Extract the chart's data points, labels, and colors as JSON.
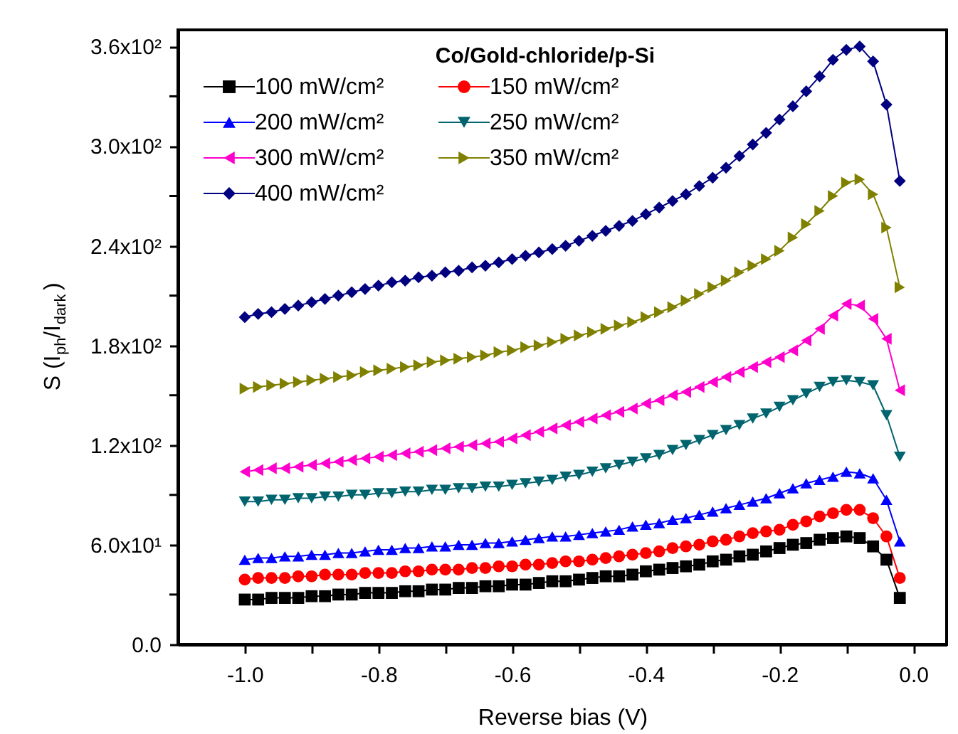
{
  "chart_data": {
    "type": "line",
    "xlabel": "Reverse bias (V)",
    "ylabel": "S (I$_{ph}$/I$_{dark}$)",
    "legend_title": "Co/Gold-chloride/p-Si",
    "legend": "top left",
    "line_style": "solid",
    "xlim": [
      -1.1,
      0.05
    ],
    "ylim": [
      0,
      370
    ],
    "xticks": [
      {
        "value": -1.0,
        "label": "-1.0"
      },
      {
        "value": -0.9,
        "label": null
      },
      {
        "value": -0.8,
        "label": "-0.8"
      },
      {
        "value": -0.7,
        "label": null
      },
      {
        "value": -0.6,
        "label": "-0.6"
      },
      {
        "value": -0.5,
        "label": null
      },
      {
        "value": -0.4,
        "label": "-0.4"
      },
      {
        "value": -0.3,
        "label": null
      },
      {
        "value": -0.2,
        "label": "-0.2"
      },
      {
        "value": -0.1,
        "label": null
      },
      {
        "value": 0.0,
        "label": "0.0"
      }
    ],
    "yticks": [
      {
        "value": 0,
        "label": "0.0"
      },
      {
        "value": 30,
        "label": null
      },
      {
        "value": 60,
        "label": "6.0x10¹"
      },
      {
        "value": 90,
        "label": null
      },
      {
        "value": 120,
        "label": "1.2x10²"
      },
      {
        "value": 150,
        "label": null
      },
      {
        "value": 180,
        "label": "1.8x10²"
      },
      {
        "value": 210,
        "label": null
      },
      {
        "value": 240,
        "label": "2.4x10²"
      },
      {
        "value": 270,
        "label": null
      },
      {
        "value": 300,
        "label": "3.0x10²"
      },
      {
        "value": 330,
        "label": null
      },
      {
        "value": 360,
        "label": "3.6x10²"
      }
    ],
    "x": [
      -1.0,
      -0.98,
      -0.96,
      -0.94,
      -0.92,
      -0.9,
      -0.88,
      -0.86,
      -0.84,
      -0.82,
      -0.8,
      -0.78,
      -0.76,
      -0.74,
      -0.72,
      -0.7,
      -0.68,
      -0.66,
      -0.64,
      -0.62,
      -0.6,
      -0.58,
      -0.56,
      -0.54,
      -0.52,
      -0.5,
      -0.48,
      -0.46,
      -0.44,
      -0.42,
      -0.4,
      -0.38,
      -0.36,
      -0.34,
      -0.32,
      -0.3,
      -0.28,
      -0.26,
      -0.24,
      -0.22,
      -0.2,
      -0.18,
      -0.16,
      -0.14,
      -0.12,
      -0.1,
      -0.08,
      -0.06,
      -0.04,
      -0.02
    ],
    "series": [
      {
        "name": "100 mW/cm²",
        "color": "#000000",
        "marker": "square",
        "values": [
          27,
          27,
          28,
          28,
          28,
          29,
          29,
          30,
          30,
          31,
          31,
          31,
          32,
          32,
          33,
          33,
          34,
          34,
          35,
          35,
          36,
          36,
          37,
          38,
          38,
          39,
          40,
          41,
          41,
          42,
          44,
          45,
          46,
          47,
          48,
          50,
          51,
          53,
          54,
          56,
          58,
          60,
          61,
          63,
          64,
          65,
          64,
          59,
          51,
          28
        ]
      },
      {
        "name": "150 mW/cm²",
        "color": "#ff0000",
        "marker": "circle",
        "values": [
          39,
          40,
          40,
          40,
          41,
          41,
          42,
          42,
          42,
          43,
          43,
          43,
          44,
          44,
          45,
          45,
          45,
          46,
          46,
          47,
          47,
          48,
          48,
          49,
          50,
          50,
          51,
          52,
          53,
          54,
          55,
          56,
          58,
          59,
          60,
          62,
          63,
          65,
          67,
          68,
          69,
          72,
          74,
          77,
          79,
          81,
          81,
          76,
          65,
          40
        ]
      },
      {
        "name": "200 mW/cm²",
        "color": "#0000ff",
        "marker": "triangle-up",
        "values": [
          51,
          52,
          52,
          53,
          53,
          54,
          54,
          55,
          55,
          56,
          57,
          57,
          58,
          58,
          59,
          59,
          60,
          60,
          61,
          61,
          62,
          63,
          64,
          65,
          65,
          66,
          67,
          68,
          69,
          71,
          72,
          73,
          75,
          76,
          78,
          80,
          82,
          84,
          86,
          88,
          91,
          94,
          97,
          99,
          101,
          104,
          103,
          100,
          87,
          62
        ]
      },
      {
        "name": "250 mW/cm²",
        "color": "#00646e",
        "marker": "triangle-down",
        "values": [
          86,
          86,
          87,
          87,
          88,
          88,
          89,
          89,
          90,
          90,
          91,
          91,
          92,
          92,
          93,
          93,
          94,
          94,
          95,
          95,
          96,
          97,
          98,
          99,
          101,
          102,
          104,
          106,
          108,
          110,
          112,
          114,
          117,
          120,
          123,
          126,
          129,
          132,
          136,
          139,
          143,
          147,
          151,
          155,
          158,
          159,
          158,
          156,
          138,
          113
        ]
      },
      {
        "name": "300 mW/cm²",
        "color": "#ff00cc",
        "marker": "triangle-left",
        "values": [
          104,
          105,
          106,
          106,
          107,
          108,
          109,
          110,
          111,
          112,
          113,
          114,
          115,
          116,
          117,
          118,
          119,
          120,
          121,
          122,
          124,
          126,
          128,
          130,
          132,
          134,
          136,
          138,
          140,
          142,
          145,
          147,
          150,
          152,
          155,
          158,
          161,
          164,
          167,
          170,
          173,
          177,
          183,
          190,
          198,
          205,
          204,
          196,
          184,
          153
        ]
      },
      {
        "name": "350 mW/cm²",
        "color": "#808000",
        "marker": "triangle-right",
        "values": [
          154,
          155,
          156,
          157,
          158,
          159,
          160,
          161,
          162,
          164,
          165,
          166,
          167,
          168,
          170,
          171,
          172,
          173,
          174,
          176,
          177,
          179,
          180,
          182,
          184,
          186,
          188,
          190,
          192,
          194,
          197,
          200,
          203,
          207,
          211,
          215,
          219,
          224,
          228,
          232,
          237,
          245,
          253,
          261,
          270,
          278,
          280,
          271,
          251,
          215
        ]
      },
      {
        "name": "400 mW/cm²",
        "color": "#000080",
        "marker": "diamond",
        "values": [
          197,
          199,
          200,
          202,
          204,
          206,
          208,
          210,
          212,
          214,
          216,
          218,
          219,
          221,
          222,
          224,
          225,
          227,
          228,
          230,
          232,
          234,
          236,
          238,
          240,
          243,
          246,
          249,
          252,
          255,
          259,
          263,
          267,
          271,
          276,
          281,
          287,
          294,
          301,
          308,
          316,
          324,
          333,
          342,
          352,
          358,
          360,
          351,
          325,
          279
        ]
      }
    ]
  }
}
